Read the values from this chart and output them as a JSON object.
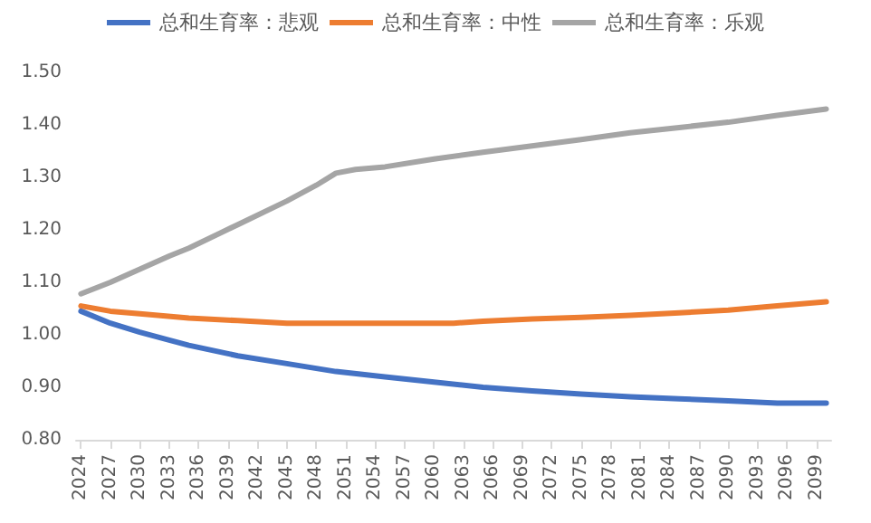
{
  "chart_data": {
    "type": "line",
    "legend": "top",
    "grid": false,
    "marker": "none",
    "line_style": "solid",
    "xlim": [
      2023.5,
      2100.5
    ],
    "xticks": [
      2024,
      2027,
      2030,
      2033,
      2036,
      2039,
      2042,
      2045,
      2048,
      2051,
      2054,
      2057,
      2060,
      2063,
      2066,
      2069,
      2072,
      2075,
      2078,
      2081,
      2084,
      2087,
      2090,
      2093,
      2096,
      2099
    ],
    "ylim": [
      0.8,
      1.5
    ],
    "yticks": [
      {
        "value": 0.8,
        "label": "0.80"
      },
      {
        "value": 0.9,
        "label": "0.90"
      },
      {
        "value": 1.0,
        "label": "1.00"
      },
      {
        "value": 1.1,
        "label": "1.10"
      },
      {
        "value": 1.2,
        "label": "1.20"
      },
      {
        "value": 1.3,
        "label": "1.30"
      },
      {
        "value": 1.4,
        "label": "1.40"
      },
      {
        "value": 1.5,
        "label": "1.50"
      }
    ],
    "series": [
      {
        "name": "总和生育率：悲观",
        "color": "#4472c4",
        "x": [
          2024,
          2027,
          2030,
          2033,
          2035,
          2040,
          2045,
          2050,
          2055,
          2060,
          2065,
          2070,
          2075,
          2080,
          2085,
          2090,
          2095,
          2100
        ],
        "values": [
          1.045,
          1.022,
          1.005,
          0.99,
          0.98,
          0.96,
          0.945,
          0.93,
          0.92,
          0.91,
          0.9,
          0.893,
          0.887,
          0.882,
          0.878,
          0.874,
          0.87,
          0.87
        ]
      },
      {
        "name": "总和生育率：中性",
        "color": "#ed7d31",
        "x": [
          2024,
          2027,
          2030,
          2035,
          2040,
          2045,
          2050,
          2055,
          2062,
          2065,
          2070,
          2075,
          2080,
          2085,
          2090,
          2095,
          2100
        ],
        "values": [
          1.055,
          1.045,
          1.04,
          1.032,
          1.027,
          1.022,
          1.022,
          1.022,
          1.022,
          1.026,
          1.03,
          1.033,
          1.037,
          1.042,
          1.047,
          1.055,
          1.063
        ]
      },
      {
        "name": "总和生育率：乐观",
        "color": "#a5a5a5",
        "x": [
          2024,
          2027,
          2030,
          2033,
          2035,
          2040,
          2045,
          2048,
          2050,
          2052,
          2055,
          2060,
          2065,
          2070,
          2075,
          2080,
          2085,
          2090,
          2095,
          2100
        ],
        "values": [
          1.078,
          1.1,
          1.125,
          1.15,
          1.165,
          1.21,
          1.255,
          1.285,
          1.308,
          1.315,
          1.32,
          1.335,
          1.348,
          1.36,
          1.372,
          1.385,
          1.395,
          1.405,
          1.418,
          1.43
        ]
      }
    ]
  }
}
